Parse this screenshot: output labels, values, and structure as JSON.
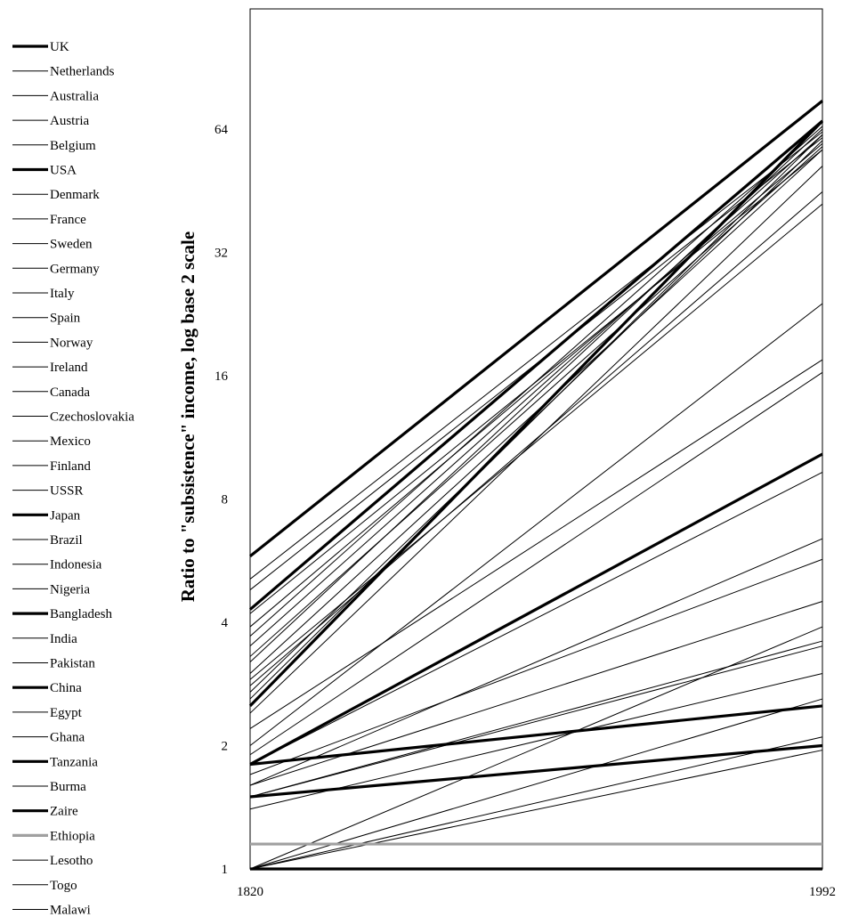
{
  "chart_data": {
    "type": "line",
    "title": "",
    "xlabel": "",
    "ylabel": "Ratio to \"subsistence\" income, log base 2 scale",
    "y_scale": "log2",
    "ylim": [
      1,
      128
    ],
    "x_ticks": [
      "1820",
      "1992"
    ],
    "y_ticks": [
      "1",
      "2",
      "4",
      "8",
      "16",
      "32",
      "64"
    ],
    "legend_position": "left",
    "grid": false,
    "series": [
      {
        "name": "UK",
        "values": [
          5.8,
          75
        ],
        "weight": "bold",
        "color": "#000000"
      },
      {
        "name": "Netherlands",
        "values": [
          5.1,
          63
        ],
        "weight": "normal",
        "color": "#000000"
      },
      {
        "name": "Australia",
        "values": [
          4.8,
          61
        ],
        "weight": "normal",
        "color": "#000000"
      },
      {
        "name": "Austria",
        "values": [
          3.9,
          59
        ],
        "weight": "normal",
        "color": "#000000"
      },
      {
        "name": "Belgium",
        "values": [
          4.2,
          57
        ],
        "weight": "normal",
        "color": "#000000"
      },
      {
        "name": "USA",
        "values": [
          4.3,
          67
        ],
        "weight": "bold",
        "color": "#000000"
      },
      {
        "name": "Denmark",
        "values": [
          3.7,
          65
        ],
        "weight": "normal",
        "color": "#000000"
      },
      {
        "name": "France",
        "values": [
          3.5,
          62
        ],
        "weight": "normal",
        "color": "#000000"
      },
      {
        "name": "Sweden",
        "values": [
          3.3,
          58
        ],
        "weight": "normal",
        "color": "#000000"
      },
      {
        "name": "Germany",
        "values": [
          3.2,
          64
        ],
        "weight": "normal",
        "color": "#000000"
      },
      {
        "name": "Italy",
        "values": [
          3.0,
          57
        ],
        "weight": "normal",
        "color": "#000000"
      },
      {
        "name": "Spain",
        "values": [
          2.9,
          42
        ],
        "weight": "normal",
        "color": "#000000"
      },
      {
        "name": "Norway",
        "values": [
          2.7,
          60
        ],
        "weight": "normal",
        "color": "#000000"
      },
      {
        "name": "Ireland",
        "values": [
          2.8,
          45
        ],
        "weight": "normal",
        "color": "#000000"
      },
      {
        "name": "Canada",
        "values": [
          2.6,
          62
        ],
        "weight": "normal",
        "color": "#000000"
      },
      {
        "name": "Czechoslovakia",
        "values": [
          2.2,
          17.5
        ],
        "weight": "normal",
        "color": "#000000"
      },
      {
        "name": "Mexico",
        "values": [
          1.9,
          16.3
        ],
        "weight": "normal",
        "color": "#000000"
      },
      {
        "name": "Finland",
        "values": [
          2.4,
          52
        ],
        "weight": "normal",
        "color": "#000000"
      },
      {
        "name": "USSR",
        "values": [
          2.0,
          24
        ],
        "weight": "normal",
        "color": "#000000"
      },
      {
        "name": "Japan",
        "values": [
          2.5,
          67
        ],
        "weight": "bold",
        "color": "#000000"
      },
      {
        "name": "Brazil",
        "values": [
          1.8,
          9.3
        ],
        "weight": "normal",
        "color": "#000000"
      },
      {
        "name": "Indonesia",
        "values": [
          1.6,
          6.4
        ],
        "weight": "normal",
        "color": "#000000"
      },
      {
        "name": "Nigeria",
        "values": [
          1.0,
          3.9
        ],
        "weight": "normal",
        "color": "#000000"
      },
      {
        "name": "Bangladesh",
        "values": [
          1.8,
          2.5
        ],
        "weight": "bold",
        "color": "#000000"
      },
      {
        "name": "India",
        "values": [
          1.5,
          3.5
        ],
        "weight": "normal",
        "color": "#000000"
      },
      {
        "name": "Pakistan",
        "values": [
          1.4,
          3.0
        ],
        "weight": "normal",
        "color": "#000000"
      },
      {
        "name": "China",
        "values": [
          1.8,
          10.3
        ],
        "weight": "bold",
        "color": "#000000"
      },
      {
        "name": "Egypt",
        "values": [
          1.7,
          5.7
        ],
        "weight": "normal",
        "color": "#000000"
      },
      {
        "name": "Ghana",
        "values": [
          1.5,
          3.6
        ],
        "weight": "normal",
        "color": "#000000"
      },
      {
        "name": "Tanzania",
        "values": [
          1.0,
          1.0
        ],
        "weight": "bold",
        "color": "#000000"
      },
      {
        "name": "Burma",
        "values": [
          1.0,
          2.1
        ],
        "weight": "normal",
        "color": "#000000"
      },
      {
        "name": "Zaire",
        "values": [
          1.5,
          2.0
        ],
        "weight": "bold",
        "color": "#000000"
      },
      {
        "name": "Ethiopia",
        "values": [
          1.15,
          1.15
        ],
        "weight": "bold",
        "color": "#a0a0a0"
      },
      {
        "name": "Lesotho",
        "values": [
          1.0,
          1.95
        ],
        "weight": "normal",
        "color": "#000000"
      },
      {
        "name": "Togo",
        "values": [
          1.6,
          4.5
        ],
        "weight": "normal",
        "color": "#000000"
      },
      {
        "name": "Malawi",
        "values": [
          1.0,
          2.6
        ],
        "weight": "normal",
        "color": "#000000"
      }
    ]
  }
}
